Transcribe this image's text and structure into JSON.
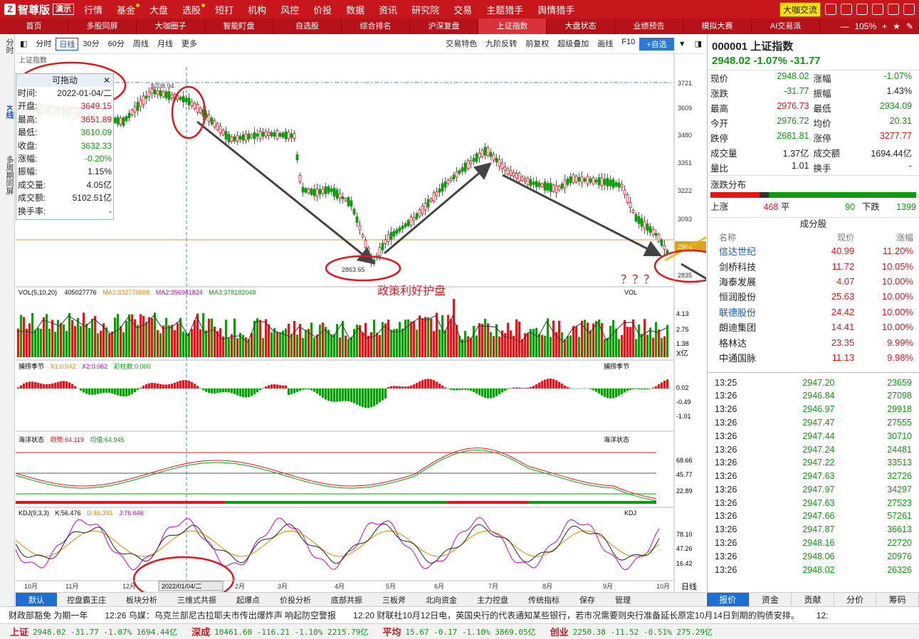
{
  "topbar": {
    "logo": "智尊版",
    "demo": "演示",
    "menu": [
      "行情",
      "基金",
      "大盘",
      "选股",
      "短打",
      "机构",
      "风控",
      "价投",
      "数据",
      "资讯",
      "研究院",
      "交易",
      "主题猎手",
      "舆情猎手"
    ],
    "dakabutton": "大咖交流"
  },
  "tabs": [
    "首页",
    "多股同屏",
    "大咖圈子",
    "智能盯盘",
    "自选股",
    "综合排名",
    "沪深复盘",
    "上证指数",
    "大盘状态",
    "业绩预告",
    "模拟大赛",
    "AI交易派"
  ],
  "active_tab": "上证指数",
  "zoom": "105%",
  "left_tabs": [
    "分时",
    "K线",
    "多周期同屏"
  ],
  "toolbar": {
    "periods": [
      "分时",
      "日线",
      "30分",
      "60分",
      "周线",
      "月线",
      "更多"
    ],
    "active": "日线",
    "right": [
      "交易特色",
      "九阶反转",
      "前复权",
      "超级叠加",
      "画线",
      "F10",
      "+自选"
    ]
  },
  "chart": {
    "title": "上证指数",
    "y_ticks": [
      "3721",
      "3609",
      "3480",
      "3351",
      "3222",
      "3093",
      "2964",
      "2835"
    ],
    "current_price_label": "2964",
    "high_label": "3708.94",
    "low_label": "2863.65",
    "annotation": "政策利好护盘",
    "question": "？？？",
    "x_ticks": [
      "10月",
      "11月",
      "12月",
      "2022/01/04/二",
      "2月",
      "3月",
      "4月",
      "5月",
      "6月",
      "7月",
      "8月",
      "9月",
      "10月"
    ],
    "period_label": "日线",
    "vol": {
      "header": "VOL(5,10,20)",
      "value": "405027776",
      "ma1": "MA1:332778688",
      "ma2": "MA2:356941824",
      "ma3": "MA3:378182048",
      "ticks": [
        "4.13",
        "2.75",
        "1.38",
        "X亿"
      ],
      "name": "VOL"
    },
    "season": {
      "header": "捕捞季节",
      "x1": "X1:0.042",
      "x2": "X2:0.062",
      "bars": "彩柱数:0.000",
      "ticks": [
        "0.02",
        "-0.49",
        "-1.01"
      ],
      "name": "捕捞季节"
    },
    "ocean": {
      "header": "海洋状态",
      "trend": "趋势:64.119",
      "avg": "均值:64.945",
      "ticks": [
        "68.66",
        "45.77",
        "22.89"
      ],
      "name": "海洋状态"
    },
    "kdj": {
      "header": "KDJ(9,3,3)",
      "k": "K:56.476",
      "d": "D:46.391",
      "j": "J:76.646",
      "ticks": [
        "78.10",
        "47.26",
        "16.42"
      ],
      "name": "KDJ"
    }
  },
  "infobox": {
    "title": "可拖动",
    "rows": [
      [
        "时间:",
        "2022-01-04/二"
      ],
      [
        "开盘:",
        "3649.15"
      ],
      [
        "最高:",
        "3651.89"
      ],
      [
        "最低:",
        "3610.09"
      ],
      [
        "收盘:",
        "3632.33"
      ],
      [
        "涨幅:",
        "-0.20%"
      ],
      [
        "振幅:",
        "1.15%"
      ],
      [
        "成交量:",
        "4.05亿"
      ],
      [
        "成交额:",
        "5102.51亿"
      ],
      [
        "换手率:",
        "-"
      ]
    ]
  },
  "bottom_tabs": [
    "默认",
    "控盘霸王庄",
    "板块分析",
    "三维式共振",
    "起爆点",
    "价投分析",
    "底部共振",
    "三板斧",
    "北向资金",
    "主力控盘",
    "传统指标",
    "保存",
    "管理"
  ],
  "quote": {
    "code": "000001",
    "name": "上证指数",
    "price": "2948.02",
    "pct": "-1.07%",
    "chg": "-31.77",
    "rows": [
      [
        "现价",
        "2948.02",
        "涨幅",
        "-1.07%"
      ],
      [
        "涨跌",
        "-31.77",
        "振幅",
        "1.43%"
      ],
      [
        "最高",
        "2976.73",
        "最低",
        "2934.09"
      ],
      [
        "今开",
        "2976.72",
        "均价",
        "20.31"
      ],
      [
        "跌停",
        "2681.81",
        "涨停",
        "3277.77"
      ],
      [
        "成交量",
        "1.37亿",
        "成交额",
        "1694.44亿"
      ],
      [
        "量比",
        "1.01",
        "换手",
        "-"
      ]
    ],
    "dist_title": "涨跌分布",
    "up_label": "上涨",
    "up": "468",
    "flat_label": "平",
    "flat": "90",
    "down_label": "下跌",
    "down": "1399"
  },
  "constituents": {
    "title": "成分股",
    "headers": [
      "名称",
      "现价",
      "涨幅"
    ],
    "rows": [
      [
        "信达世纪",
        "40.99",
        "11.20%"
      ],
      [
        "剑桥科技",
        "11.72",
        "10.05%"
      ],
      [
        "海泰发展",
        "4.07",
        "10.00%"
      ],
      [
        "恒润股份",
        "25.63",
        "10.00%"
      ],
      [
        "联德股份",
        "24.42",
        "10.00%"
      ],
      [
        "朗迪集团",
        "14.41",
        "10.00%"
      ],
      [
        "格林达",
        "23.35",
        "9.99%"
      ],
      [
        "中通国脉",
        "11.13",
        "9.98%"
      ]
    ]
  },
  "ticks": [
    [
      "13:25",
      "2947.20",
      "23659"
    ],
    [
      "13:26",
      "2946.84",
      "27098"
    ],
    [
      "13:26",
      "2946.97",
      "29918"
    ],
    [
      "13:26",
      "2947.47",
      "27555"
    ],
    [
      "13:26",
      "2947.44",
      "30710"
    ],
    [
      "13:26",
      "2947.24",
      "24481"
    ],
    [
      "13:26",
      "2947.22",
      "33513"
    ],
    [
      "13:26",
      "2947.63",
      "32726"
    ],
    [
      "13:26",
      "2947.97",
      "34297"
    ],
    [
      "13:26",
      "2947.63",
      "27523"
    ],
    [
      "13:26",
      "2947.66",
      "57261"
    ],
    [
      "13:26",
      "2947.87",
      "36613"
    ],
    [
      "13:26",
      "2948.16",
      "22720"
    ],
    [
      "13:26",
      "2948.06",
      "20976"
    ],
    [
      "13:26",
      "2948.02",
      "26326"
    ]
  ],
  "right_tabs": [
    "报价",
    "资金",
    "贡献",
    "分价",
    "筹码"
  ],
  "news": [
    "财政部豁免 为期一年",
    "12:26 乌媒：乌克兰部尼古拉耶夫市传出爆炸声 响起防空警报",
    "12:20 财联社10月12日电，英国央行的代表通知某些银行，若市况需要则央行准备延长原定10月14日到期的购债安排。",
    "12:"
  ],
  "indices": [
    [
      "上证",
      "2948.02 -31.77 -1.07% 1694.44亿"
    ],
    [
      "深成",
      "10461.60 -116.21 -1.10% 2215.79亿"
    ],
    [
      "平均",
      "15.67 -0.17 -1.10% 3869.05亿"
    ],
    [
      "创业",
      "2250.38 -11.52 -0.51% 275.29亿"
    ]
  ]
}
